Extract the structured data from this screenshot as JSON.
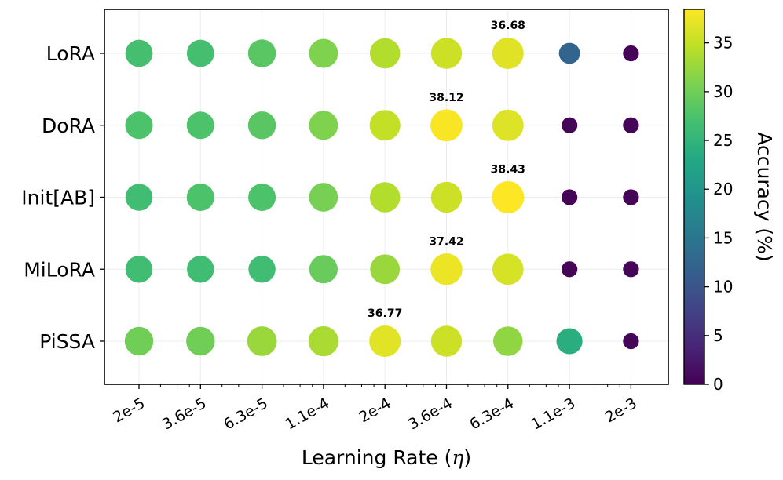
{
  "chart_data": {
    "type": "scatter",
    "subtype": "bubble-heatmap",
    "x_categories": [
      "2e-5",
      "3.6e-5",
      "6.3e-5",
      "1.1e-4",
      "2e-4",
      "3.6e-4",
      "6.3e-4",
      "1.1e-3",
      "2e-3"
    ],
    "y_categories": [
      "LoRA",
      "DoRA",
      "Init[AB]",
      "MiLoRA",
      "PiSSA"
    ],
    "xlabel": "Learning Rate (η)",
    "ylabel": "",
    "colorbar": {
      "label": "Accuracy (%)",
      "min": 0,
      "max": 38.43,
      "ticks": [
        0,
        5,
        10,
        15,
        20,
        25,
        30,
        35
      ],
      "colormap": "viridis"
    },
    "series": [
      {
        "name": "LoRA",
        "values": [
          27.0,
          27.0,
          28.5,
          31.0,
          34.0,
          35.5,
          36.68,
          12.5,
          0.5
        ]
      },
      {
        "name": "DoRA",
        "values": [
          27.5,
          27.5,
          28.5,
          31.0,
          35.0,
          38.12,
          36.5,
          0.5,
          0.5
        ]
      },
      {
        "name": "Init[AB]",
        "values": [
          26.5,
          27.5,
          27.5,
          30.5,
          34.0,
          35.5,
          38.43,
          0.5,
          0.5
        ]
      },
      {
        "name": "MiLoRA",
        "values": [
          26.5,
          26.5,
          26.5,
          29.5,
          32.5,
          37.42,
          36.0,
          0.5,
          0.5
        ]
      },
      {
        "name": "PiSSA",
        "values": [
          30.0,
          30.0,
          32.5,
          33.5,
          36.77,
          35.5,
          32.0,
          24.0,
          0.5
        ]
      }
    ],
    "annotations": [
      {
        "row": "LoRA",
        "col": "6.3e-4",
        "text": "36.68"
      },
      {
        "row": "DoRA",
        "col": "3.6e-4",
        "text": "38.12"
      },
      {
        "row": "Init[AB]",
        "col": "6.3e-4",
        "text": "38.43"
      },
      {
        "row": "MiLoRA",
        "col": "3.6e-4",
        "text": "37.42"
      },
      {
        "row": "PiSSA",
        "col": "2e-4",
        "text": "36.77"
      }
    ],
    "grid": true
  }
}
